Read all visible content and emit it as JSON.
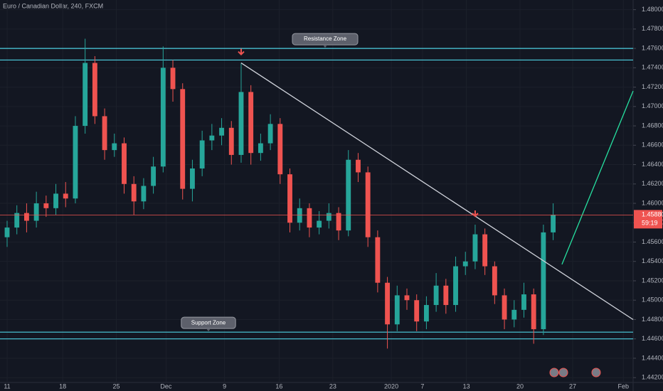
{
  "chart_data": {
    "type": "candlestick",
    "title": "Euro / Canadian Dollar, 240, FXCM",
    "up_color": "#26a69a",
    "down_color": "#ef5350",
    "x": [
      0,
      1,
      2,
      3,
      4,
      5,
      6,
      7,
      8,
      9,
      10,
      11,
      12,
      13,
      14,
      15,
      16,
      17,
      18,
      19,
      20,
      21,
      22,
      23,
      24,
      25,
      26,
      27,
      28,
      29,
      30,
      31,
      32,
      33,
      34,
      35,
      36,
      37,
      38,
      39,
      40,
      41,
      42,
      43,
      44,
      45,
      46,
      47,
      48,
      49,
      50,
      51,
      52,
      53,
      54,
      55,
      56
    ],
    "open": [
      1.4565,
      1.4575,
      1.459,
      1.4582,
      1.46,
      1.4595,
      1.461,
      1.4605,
      1.468,
      1.4745,
      1.469,
      1.4655,
      1.4662,
      1.462,
      1.4602,
      1.4618,
      1.4638,
      1.474,
      1.4718,
      1.4615,
      1.4636,
      1.4665,
      1.467,
      1.4678,
      1.465,
      1.4715,
      1.4652,
      1.4662,
      1.4682,
      1.463,
      1.458,
      1.4595,
      1.4575,
      1.4582,
      1.459,
      1.4572,
      1.4645,
      1.4632,
      1.4565,
      1.4518,
      1.4475,
      1.4505,
      1.45,
      1.4478,
      1.4495,
      1.4515,
      1.4495,
      1.4535,
      1.454,
      1.4568,
      1.4535,
      1.4505,
      1.448,
      1.449,
      1.4506,
      1.447,
      1.457
    ],
    "high": [
      1.4582,
      1.4598,
      1.46,
      1.4612,
      1.4608,
      1.462,
      1.4622,
      1.469,
      1.477,
      1.4752,
      1.4698,
      1.4672,
      1.4668,
      1.4628,
      1.4626,
      1.4648,
      1.4762,
      1.4748,
      1.4724,
      1.4645,
      1.4675,
      1.4682,
      1.4688,
      1.4685,
      1.4745,
      1.4722,
      1.4672,
      1.4692,
      1.4688,
      1.4636,
      1.4605,
      1.46,
      1.4592,
      1.46,
      1.4596,
      1.4655,
      1.4652,
      1.4638,
      1.4572,
      1.4524,
      1.4515,
      1.4512,
      1.4506,
      1.4504,
      1.4528,
      1.4522,
      1.4545,
      1.455,
      1.4578,
      1.4574,
      1.454,
      1.4512,
      1.45,
      1.4518,
      1.4512,
      1.4578,
      1.46
    ],
    "low": [
      1.4555,
      1.4568,
      1.457,
      1.4575,
      1.4586,
      1.4588,
      1.4596,
      1.46,
      1.4672,
      1.4682,
      1.4645,
      1.4648,
      1.461,
      1.4588,
      1.4594,
      1.461,
      1.4632,
      1.4705,
      1.4604,
      1.4602,
      1.4628,
      1.4655,
      1.466,
      1.464,
      1.4642,
      1.464,
      1.4644,
      1.4655,
      1.462,
      1.457,
      1.4572,
      1.4565,
      1.4568,
      1.4574,
      1.4562,
      1.4566,
      1.4622,
      1.4555,
      1.4508,
      1.445,
      1.4468,
      1.449,
      1.4468,
      1.447,
      1.4488,
      1.4486,
      1.4488,
      1.4526,
      1.4532,
      1.4526,
      1.4496,
      1.447,
      1.4472,
      1.4482,
      1.4455,
      1.4464,
      1.4562
    ],
    "close": [
      1.4575,
      1.459,
      1.4582,
      1.46,
      1.4595,
      1.461,
      1.4605,
      1.468,
      1.4745,
      1.469,
      1.4655,
      1.4662,
      1.462,
      1.4602,
      1.4618,
      1.4638,
      1.474,
      1.4718,
      1.4615,
      1.4636,
      1.4665,
      1.467,
      1.4678,
      1.465,
      1.4715,
      1.4652,
      1.4662,
      1.4682,
      1.463,
      1.458,
      1.4595,
      1.4575,
      1.4582,
      1.459,
      1.4572,
      1.4645,
      1.4632,
      1.4565,
      1.4518,
      1.4475,
      1.4505,
      1.45,
      1.4478,
      1.4495,
      1.4515,
      1.4495,
      1.4535,
      1.454,
      1.4568,
      1.4535,
      1.4505,
      1.448,
      1.449,
      1.4506,
      1.447,
      1.457,
      1.4588
    ],
    "xlim": [
      -0.73,
      64.2
    ],
    "xticks": [
      {
        "value": 0,
        "label": "11"
      },
      {
        "value": 5.7,
        "label": "18"
      },
      {
        "value": 11.2,
        "label": "25"
      },
      {
        "value": 16.3,
        "label": "Dec"
      },
      {
        "value": 22.3,
        "label": "9"
      },
      {
        "value": 27.9,
        "label": "16"
      },
      {
        "value": 33.4,
        "label": "23"
      },
      {
        "value": 39.4,
        "label": "2020"
      },
      {
        "value": 42.6,
        "label": "7"
      },
      {
        "value": 47.1,
        "label": "13"
      },
      {
        "value": 52.6,
        "label": "20"
      },
      {
        "value": 58,
        "label": "27"
      },
      {
        "value": 63.2,
        "label": "Feb"
      }
    ],
    "ylim": [
      1.4415,
      1.481
    ],
    "yticks": [
      {
        "value": 1.442,
        "label": "1.44200"
      },
      {
        "value": 1.444,
        "label": "1.44400"
      },
      {
        "value": 1.446,
        "label": "1.44600"
      },
      {
        "value": 1.448,
        "label": "1.44800"
      },
      {
        "value": 1.45,
        "label": "1.45000"
      },
      {
        "value": 1.452,
        "label": "1.45200"
      },
      {
        "value": 1.454,
        "label": "1.45400"
      },
      {
        "value": 1.456,
        "label": "1.45600"
      },
      {
        "value": 1.458,
        "label": "1.45800"
      },
      {
        "value": 1.46,
        "label": "1.46000"
      },
      {
        "value": 1.462,
        "label": "1.46200"
      },
      {
        "value": 1.464,
        "label": "1.46400"
      },
      {
        "value": 1.466,
        "label": "1.46600"
      },
      {
        "value": 1.468,
        "label": "1.46800"
      },
      {
        "value": 1.47,
        "label": "1.47000"
      },
      {
        "value": 1.472,
        "label": "1.47200"
      },
      {
        "value": 1.474,
        "label": "1.47400"
      },
      {
        "value": 1.476,
        "label": "1.47600"
      },
      {
        "value": 1.478,
        "label": "1.47800"
      },
      {
        "value": 1.48,
        "label": "1.48000"
      }
    ],
    "grid": true,
    "zones": [
      {
        "label": "Resistance Zone",
        "top": 1.476,
        "bottom": 1.4748,
        "color": "#4dd0e1"
      },
      {
        "label": "Support Zone",
        "top": 1.4467,
        "bottom": 1.446,
        "color": "#4dd0e1"
      }
    ],
    "lines": [
      {
        "color": "#d1d4dc",
        "points": [
          [
            24,
            1.4745
          ],
          [
            64.2,
            1.448
          ]
        ]
      },
      {
        "color": "#26e0a0",
        "points": [
          [
            56.9,
            1.4537
          ],
          [
            64.2,
            1.4716
          ]
        ]
      }
    ],
    "arrows": [
      24,
      48
    ],
    "last_price": {
      "value": 1.4588,
      "label": "1.45880",
      "timer": "59:19",
      "color": "#ef5350"
    }
  }
}
